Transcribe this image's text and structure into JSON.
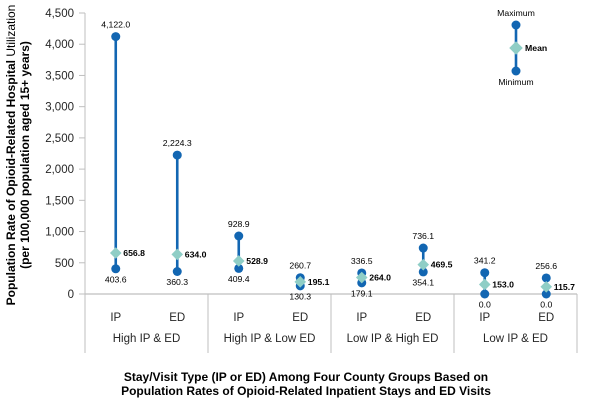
{
  "titles": {
    "y_line1_bold": "Population Rate of Opioid-Related Hospital",
    "y_line1_regular": "Utilization",
    "y_line2": "(per 100,000 population aged 15+ years)",
    "x_line1": "Stay/Visit Type (IP or ED) Among Four County  Groups  Based on",
    "x_line2": "Population Rates of Opioid-Related Inpatient Stays and ED Visits"
  },
  "chart_data": {
    "type": "scatter",
    "variant": "min-mean-max range lollipop",
    "title": "",
    "xlabel": "Stay/Visit Type (IP or ED) Among Four County Groups Based on Population Rates of Opioid-Related Inpatient Stays and ED Visits",
    "ylabel": "Population Rate of Opioid-Related Hospital Utilization (per 100,000 population aged 15+ years)",
    "ylim": [
      0,
      4500
    ],
    "ytick_step": 500,
    "ytick_labels": [
      "0",
      "500",
      "1,000",
      "1,500",
      "2,000",
      "2,500",
      "3,000",
      "3,500",
      "4,000",
      "4,500"
    ],
    "grid": false,
    "legend": {
      "position": "top-right",
      "max_label": "Maximum",
      "mean_label": "Mean",
      "min_label": "Minimum"
    },
    "groups": [
      {
        "label": "High IP & ED",
        "series": [
          {
            "stay_type": "IP",
            "min": 403.6,
            "mean": 656.8,
            "max": 4122.0
          },
          {
            "stay_type": "ED",
            "min": 360.3,
            "mean": 634.0,
            "max": 2224.3
          }
        ]
      },
      {
        "label": "High IP & Low ED",
        "series": [
          {
            "stay_type": "IP",
            "min": 409.4,
            "mean": 528.9,
            "max": 928.9
          },
          {
            "stay_type": "ED",
            "min": 130.3,
            "mean": 195.1,
            "max": 260.7
          }
        ]
      },
      {
        "label": "Low IP & High ED",
        "series": [
          {
            "stay_type": "IP",
            "min": 179.1,
            "mean": 264.0,
            "max": 336.5
          },
          {
            "stay_type": "ED",
            "min": 354.1,
            "mean": 469.5,
            "max": 736.1
          }
        ]
      },
      {
        "label": "Low IP & ED",
        "series": [
          {
            "stay_type": "IP",
            "min": 0.0,
            "mean": 153.0,
            "max": 341.2
          },
          {
            "stay_type": "ED",
            "min": 0.0,
            "mean": 115.7,
            "max": 256.6
          }
        ]
      }
    ],
    "colors": {
      "range_line": "#1266B2",
      "minmax_marker": "#1266B2",
      "mean_marker": "#8FCEC6",
      "axis_line": "#BFBFBF",
      "label_text": "#000000"
    }
  }
}
